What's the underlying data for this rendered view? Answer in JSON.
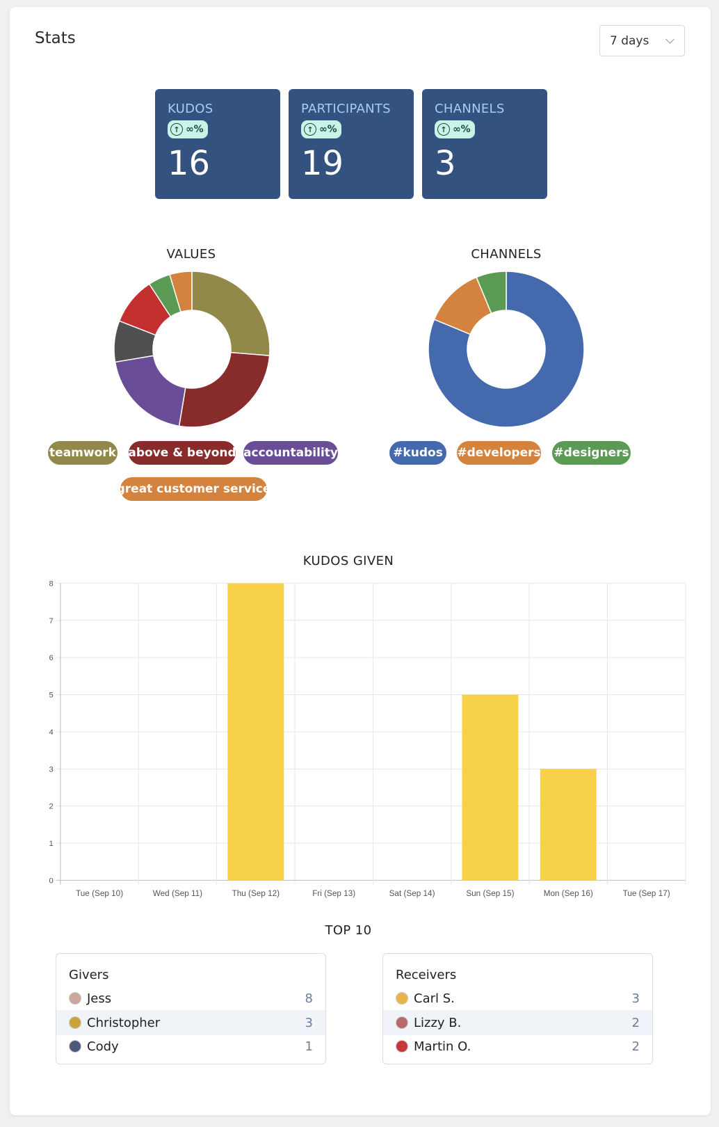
{
  "header": {
    "title": "Stats",
    "period_selected": "7 days"
  },
  "stats": [
    {
      "label": "KUDOS",
      "badge": "∞%",
      "value": "16"
    },
    {
      "label": "PARTICIPANTS",
      "badge": "∞%",
      "value": "19"
    },
    {
      "label": "CHANNELS",
      "badge": "∞%",
      "value": "3"
    }
  ],
  "values_chart": {
    "title": "VALUES",
    "slices": [
      {
        "name": "teamwork",
        "value": 4,
        "color": "#918849"
      },
      {
        "name": "above & beyond",
        "value": 4,
        "color": "#882b2b"
      },
      {
        "name": "accountability",
        "value": 3,
        "color": "#694d96"
      },
      {
        "name": "",
        "value": 1.3,
        "color": "#505050"
      },
      {
        "name": "",
        "value": 1.5,
        "color": "#c42f2f"
      },
      {
        "name": "",
        "value": 0.7,
        "color": "#5a9a55"
      },
      {
        "name": "great customer service",
        "value": 0.7,
        "color": "#d4833e"
      }
    ],
    "legend": [
      {
        "label": "teamwork",
        "color": "#918849"
      },
      {
        "label": "above & beyond",
        "color": "#882b2b"
      },
      {
        "label": "accountability",
        "color": "#694d96"
      },
      {
        "label": "great customer service",
        "color": "#d4833e"
      }
    ]
  },
  "channels_chart": {
    "title": "CHANNELS",
    "slices": [
      {
        "name": "#kudos",
        "value": 13,
        "color": "#4469ac"
      },
      {
        "name": "#developers",
        "value": 2,
        "color": "#d4833e"
      },
      {
        "name": "#designers",
        "value": 1,
        "color": "#5a9a55"
      }
    ],
    "legend": [
      {
        "label": "#kudos",
        "color": "#4469ac"
      },
      {
        "label": "#developers",
        "color": "#d4833e"
      },
      {
        "label": "#designers",
        "color": "#5a9a55"
      }
    ]
  },
  "chart_data": {
    "type": "bar",
    "title": "KUDOS GIVEN",
    "categories": [
      "Tue (Sep 10)",
      "Wed (Sep 11)",
      "Thu (Sep 12)",
      "Fri (Sep 13)",
      "Sat (Sep 14)",
      "Sun (Sep 15)",
      "Mon (Sep 16)",
      "Tue (Sep 17)"
    ],
    "values": [
      0,
      0,
      8,
      0,
      0,
      5,
      3,
      0
    ],
    "ylim": [
      0,
      8
    ],
    "yticks": [
      "0",
      "1",
      "2",
      "3",
      "4",
      "5",
      "6",
      "7",
      "8"
    ],
    "bar_color": "#f7d14a",
    "grid": true
  },
  "top10": {
    "title": "TOP 10",
    "givers": {
      "title": "Givers",
      "rows": [
        {
          "name": "Jess",
          "count": "8",
          "avatar_color": "#c9a79a"
        },
        {
          "name": "Christopher",
          "count": "3",
          "avatar_color": "#c9a23a"
        },
        {
          "name": "Cody",
          "count": "1",
          "avatar_color": "#4a5a7a"
        }
      ]
    },
    "receivers": {
      "title": "Receivers",
      "rows": [
        {
          "name": "Carl S.",
          "count": "3",
          "avatar_color": "#e8b54a"
        },
        {
          "name": "Lizzy B.",
          "count": "2",
          "avatar_color": "#b86a6a"
        },
        {
          "name": "Martin O.",
          "count": "2",
          "avatar_color": "#c43a3a"
        }
      ]
    }
  }
}
